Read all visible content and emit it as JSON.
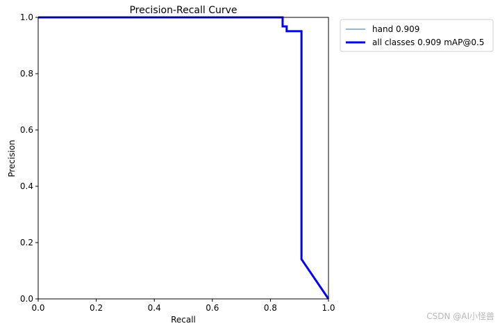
{
  "chart_data": {
    "type": "line",
    "title": "Precision-Recall Curve",
    "xlabel": "Recall",
    "ylabel": "Precision",
    "xlim": [
      0,
      1
    ],
    "ylim": [
      0,
      1
    ],
    "xticks": [
      "0.0",
      "0.2",
      "0.4",
      "0.6",
      "0.8",
      "1.0"
    ],
    "yticks": [
      "0.0",
      "0.2",
      "0.4",
      "0.6",
      "0.8",
      "1.0"
    ],
    "grid": false,
    "legend_position": "outside-top-right",
    "series": [
      {
        "name": "hand 0.909",
        "color": "#1f77b4",
        "width": "thin",
        "x": [
          0,
          0.842,
          0.842,
          0.856,
          0.856,
          0.907,
          0.907,
          1.0
        ],
        "y": [
          1,
          1,
          0.968,
          0.968,
          0.951,
          0.951,
          0.141,
          0
        ]
      },
      {
        "name": "all classes 0.909 mAP@0.5",
        "color": "#0000ff",
        "width": "thick",
        "x": [
          0,
          0.842,
          0.842,
          0.856,
          0.856,
          0.907,
          0.907,
          1.0
        ],
        "y": [
          1,
          1,
          0.968,
          0.968,
          0.951,
          0.951,
          0.141,
          0
        ]
      }
    ]
  },
  "watermark": "CSDN @AI小怪兽"
}
